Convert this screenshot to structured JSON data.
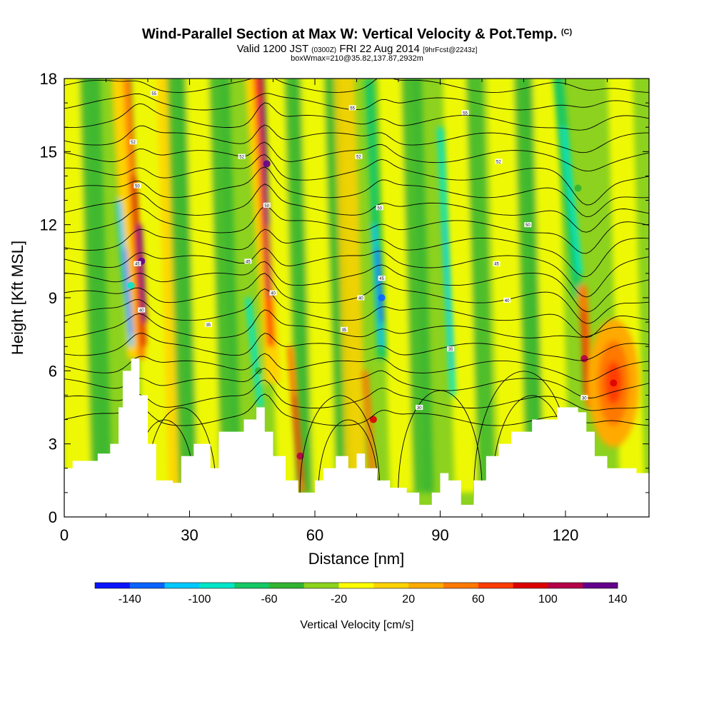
{
  "title": {
    "main": "Wind-Parallel Section at Max W: Vertical Velocity & Pot.Temp.",
    "copyright": "(C)",
    "valid_prefix": "Valid 1200 JST",
    "valid_utc": "(0300Z)",
    "valid_date": "FRI 22 Aug 2014",
    "forecast": "[9hrFcst@2243z]",
    "box": "boxWmax=210@35.82,137.87,2932m"
  },
  "chart_data": {
    "type": "heatmap",
    "xlabel": "Distance [nm]",
    "ylabel": "Height [Kft MSL]",
    "xlim": [
      0,
      140
    ],
    "ylim": [
      0,
      18
    ],
    "x_ticks": [
      "0",
      "30",
      "60",
      "90",
      "120"
    ],
    "y_ticks": [
      "0",
      "3",
      "6",
      "9",
      "12",
      "15",
      "18"
    ],
    "colorbar": {
      "title": "Vertical Velocity [cm/s]",
      "tick_labels": [
        "-140",
        "-100",
        "-60",
        "-20",
        "20",
        "60",
        "100",
        "140"
      ],
      "colors": [
        "#0a14ff",
        "#0a64ff",
        "#00c8ff",
        "#00e6c8",
        "#14c864",
        "#32b432",
        "#8cd21e",
        "#ffff00",
        "#ffd200",
        "#ffaa00",
        "#ff7800",
        "#ff3c00",
        "#dc0000",
        "#b40046",
        "#64008c"
      ]
    },
    "terrain_kft": [
      [
        0,
        2.0
      ],
      [
        2,
        2.3
      ],
      [
        8,
        2.6
      ],
      [
        11,
        3.0
      ],
      [
        13,
        4.5
      ],
      [
        14,
        6.0
      ],
      [
        16,
        6.5
      ],
      [
        18,
        5.0
      ],
      [
        20,
        3.0
      ],
      [
        22,
        1.5
      ],
      [
        26,
        1.4
      ],
      [
        28,
        2.5
      ],
      [
        31,
        3.0
      ],
      [
        35,
        2.0
      ],
      [
        37,
        3.5
      ],
      [
        40,
        3.5
      ],
      [
        43,
        4.0
      ],
      [
        46,
        4.5
      ],
      [
        48,
        3.5
      ],
      [
        50,
        2.5
      ],
      [
        53,
        1.5
      ],
      [
        56,
        1.0
      ],
      [
        60,
        1.5
      ],
      [
        62,
        2.0
      ],
      [
        65,
        2.5
      ],
      [
        68,
        2.0
      ],
      [
        70,
        2.6
      ],
      [
        72,
        2.0
      ],
      [
        75,
        1.5
      ],
      [
        78,
        1.2
      ],
      [
        82,
        1.0
      ],
      [
        85,
        0.5
      ],
      [
        88,
        1.0
      ],
      [
        90,
        1.8
      ],
      [
        92,
        1.5
      ],
      [
        95,
        0.5
      ],
      [
        98,
        1.5
      ],
      [
        101,
        2.5
      ],
      [
        104,
        3.0
      ],
      [
        107,
        3.5
      ],
      [
        112,
        4.0
      ],
      [
        118,
        4.5
      ],
      [
        120,
        4.5
      ],
      [
        123,
        4.3
      ],
      [
        125,
        3.5
      ],
      [
        127,
        2.5
      ],
      [
        130,
        2.0
      ],
      [
        134,
        2.0
      ],
      [
        137,
        1.8
      ],
      [
        140,
        1.8
      ]
    ],
    "updraft_cores": [
      {
        "x": 18.5,
        "y": 10.5,
        "w": 140
      },
      {
        "x": 48.5,
        "y": 14.5,
        "w": 140
      },
      {
        "x": 124.5,
        "y": 6.5,
        "w": 100
      },
      {
        "x": 131.5,
        "y": 5.5,
        "w": 80
      },
      {
        "x": 56.5,
        "y": 2.5,
        "w": 100
      },
      {
        "x": 74,
        "y": 4.0,
        "w": 80
      }
    ],
    "downdraft_cores": [
      {
        "x": 16,
        "y": 9.5,
        "w": -100
      },
      {
        "x": 76,
        "y": 9.0,
        "w": -140
      },
      {
        "x": 46.5,
        "y": 6.0,
        "w": -60
      },
      {
        "x": 123,
        "y": 13.5,
        "w": -60
      }
    ],
    "contour_labels": [
      {
        "x": 21.5,
        "y": 17.4,
        "text": "55"
      },
      {
        "x": 16.5,
        "y": 15.4,
        "text": "52"
      },
      {
        "x": 17.5,
        "y": 13.6,
        "text": "50"
      },
      {
        "x": 17.5,
        "y": 10.4,
        "text": "45"
      },
      {
        "x": 18.5,
        "y": 8.5,
        "text": "40"
      },
      {
        "x": 42.5,
        "y": 14.8,
        "text": "52"
      },
      {
        "x": 48.5,
        "y": 12.8,
        "text": "50"
      },
      {
        "x": 44,
        "y": 10.5,
        "text": "45"
      },
      {
        "x": 50,
        "y": 9.2,
        "text": "40"
      },
      {
        "x": 34.5,
        "y": 7.9,
        "text": "35"
      },
      {
        "x": 69,
        "y": 16.8,
        "text": "55"
      },
      {
        "x": 70.5,
        "y": 14.8,
        "text": "52"
      },
      {
        "x": 75.5,
        "y": 12.7,
        "text": "50"
      },
      {
        "x": 76,
        "y": 9.8,
        "text": "45"
      },
      {
        "x": 71,
        "y": 9.0,
        "text": "40"
      },
      {
        "x": 67,
        "y": 7.7,
        "text": "35"
      },
      {
        "x": 96,
        "y": 16.6,
        "text": "55"
      },
      {
        "x": 104,
        "y": 14.6,
        "text": "52"
      },
      {
        "x": 111,
        "y": 12.0,
        "text": "50"
      },
      {
        "x": 103.5,
        "y": 10.4,
        "text": "45"
      },
      {
        "x": 106,
        "y": 8.9,
        "text": "40"
      },
      {
        "x": 92.5,
        "y": 6.9,
        "text": "35"
      },
      {
        "x": 85,
        "y": 4.5,
        "text": "30"
      },
      {
        "x": 124.5,
        "y": 4.9,
        "text": "30"
      }
    ]
  }
}
